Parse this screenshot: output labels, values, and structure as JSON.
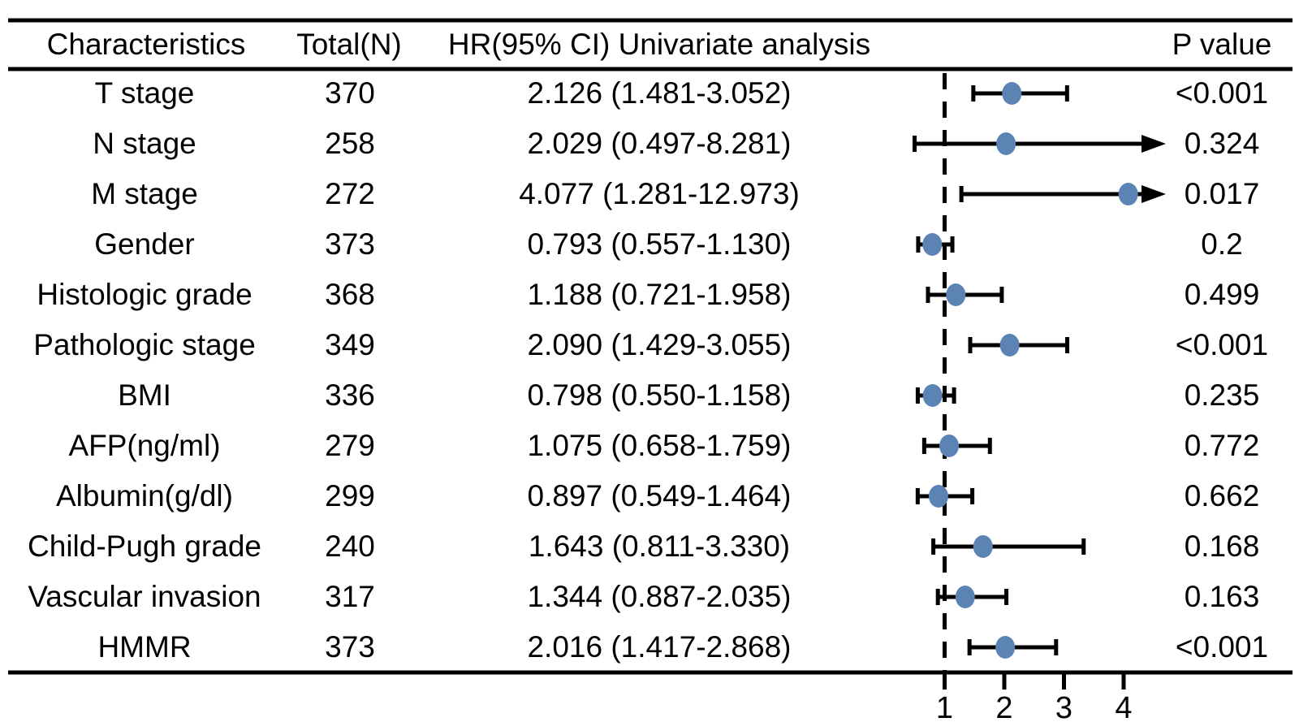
{
  "figure": {
    "description": "Forest plot table of univariate Cox analysis",
    "headers": {
      "characteristics": "Characteristics",
      "total": "Total(N)",
      "hr": "HR(95% CI) Univariate analysis",
      "p": "P value"
    }
  },
  "chart_data": {
    "type": "scatter",
    "variant": "forest-plot",
    "title": "",
    "xlabel": "",
    "ylabel": "",
    "axis": {
      "ticks": [
        1,
        2,
        3,
        4
      ],
      "reference_line": 1,
      "scale": "linear",
      "arrow_means": "confidence interval exceeds axis range"
    },
    "colors": {
      "dot": "#5b84b5",
      "line": "#000000",
      "text": "#000000",
      "background": "#ffffff"
    },
    "rows": [
      {
        "label": "T stage",
        "total": "370",
        "hr_ci": "2.126 (1.481-3.052)",
        "hr": 2.126,
        "lo": 1.481,
        "hi": 3.052,
        "p": "<0.001"
      },
      {
        "label": "N stage",
        "total": "258",
        "hr_ci": "2.029 (0.497-8.281)",
        "hr": 2.029,
        "lo": 0.497,
        "hi": 8.281,
        "p": "0.324"
      },
      {
        "label": "M stage",
        "total": "272",
        "hr_ci": "4.077 (1.281-12.973)",
        "hr": 4.077,
        "lo": 1.281,
        "hi": 12.973,
        "p": "0.017"
      },
      {
        "label": "Gender",
        "total": "373",
        "hr_ci": "0.793 (0.557-1.130)",
        "hr": 0.793,
        "lo": 0.557,
        "hi": 1.13,
        "p": "0.2"
      },
      {
        "label": "Histologic grade",
        "total": "368",
        "hr_ci": "1.188 (0.721-1.958)",
        "hr": 1.188,
        "lo": 0.721,
        "hi": 1.958,
        "p": "0.499"
      },
      {
        "label": "Pathologic stage",
        "total": "349",
        "hr_ci": "2.090 (1.429-3.055)",
        "hr": 2.09,
        "lo": 1.429,
        "hi": 3.055,
        "p": "<0.001"
      },
      {
        "label": "BMI",
        "total": "336",
        "hr_ci": "0.798 (0.550-1.158)",
        "hr": 0.798,
        "lo": 0.55,
        "hi": 1.158,
        "p": "0.235"
      },
      {
        "label": "AFP(ng/ml)",
        "total": "279",
        "hr_ci": "1.075 (0.658-1.759)",
        "hr": 1.075,
        "lo": 0.658,
        "hi": 1.759,
        "p": "0.772"
      },
      {
        "label": "Albumin(g/dl)",
        "total": "299",
        "hr_ci": "0.897 (0.549-1.464)",
        "hr": 0.897,
        "lo": 0.549,
        "hi": 1.464,
        "p": "0.662"
      },
      {
        "label": "Child-Pugh grade",
        "total": "240",
        "hr_ci": "1.643 (0.811-3.330)",
        "hr": 1.643,
        "lo": 0.811,
        "hi": 3.33,
        "p": "0.168"
      },
      {
        "label": "Vascular invasion",
        "total": "317",
        "hr_ci": "1.344 (0.887-2.035)",
        "hr": 1.344,
        "lo": 0.887,
        "hi": 2.035,
        "p": "0.163"
      },
      {
        "label": "HMMR",
        "total": "373",
        "hr_ci": "2.016 (1.417-2.868)",
        "hr": 2.016,
        "lo": 1.417,
        "hi": 2.868,
        "p": "<0.001"
      }
    ]
  }
}
